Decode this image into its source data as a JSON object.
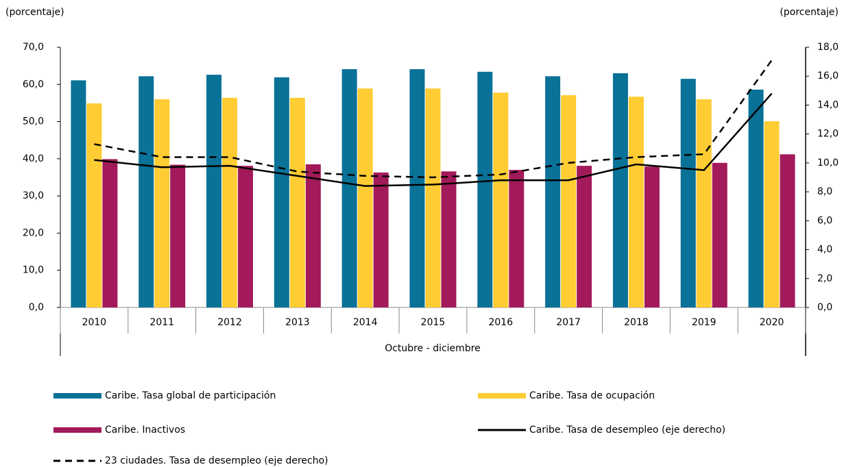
{
  "chart_data": {
    "type": "bar",
    "y_label": "(porcentaje)",
    "y2_label": "(porcentaje)",
    "x_label": "Octubre - diciembre",
    "categories": [
      "2010",
      "2011",
      "2012",
      "2013",
      "2014",
      "2015",
      "2016",
      "2017",
      "2018",
      "2019",
      "2020"
    ],
    "series": [
      {
        "name": "Caribe. Tasa global de participación",
        "type": "bar",
        "color": "#0a7197",
        "values": [
          61.1,
          62.2,
          62.6,
          61.9,
          64.1,
          64.1,
          63.4,
          62.2,
          63.0,
          61.5,
          58.6
        ]
      },
      {
        "name": "Caribe. Tasa de ocupación",
        "type": "bar",
        "color": "#ffcc33",
        "values": [
          54.9,
          56.0,
          56.4,
          56.4,
          58.9,
          58.9,
          57.8,
          57.1,
          56.7,
          56.0,
          50.1
        ]
      },
      {
        "name": "Caribe. Inactivos",
        "type": "bar",
        "color": "#a31a5a",
        "values": [
          39.9,
          38.4,
          38.1,
          38.5,
          36.3,
          36.6,
          37.0,
          38.1,
          37.9,
          38.9,
          41.2
        ]
      },
      {
        "name": "Caribe. Tasa de desempleo (eje derecho)",
        "type": "line",
        "axis": "y2",
        "color": "#000000",
        "dashed": false,
        "values": [
          10.2,
          9.7,
          9.8,
          9.1,
          8.4,
          8.5,
          8.8,
          8.8,
          9.9,
          9.5,
          14.8
        ]
      },
      {
        "name": "23 ciudades. Tasa de desempleo (eje derecho)",
        "type": "line",
        "axis": "y2",
        "color": "#000000",
        "dashed": true,
        "values": [
          11.3,
          10.4,
          10.4,
          9.4,
          9.1,
          9.0,
          9.2,
          10.0,
          10.4,
          10.6,
          17.1
        ]
      }
    ],
    "ylim": [
      0,
      70
    ],
    "yticks": [
      {
        "value": 0,
        "label": "0,0"
      },
      {
        "value": 10,
        "label": "10,0"
      },
      {
        "value": 20,
        "label": "20,0"
      },
      {
        "value": 30,
        "label": "30,0"
      },
      {
        "value": 40,
        "label": "40,0"
      },
      {
        "value": 50,
        "label": "50,0"
      },
      {
        "value": 60,
        "label": "60,0"
      },
      {
        "value": 70,
        "label": "70,0"
      }
    ],
    "y2lim": [
      0,
      18
    ],
    "y2ticks": [
      {
        "value": 0,
        "label": "0,0"
      },
      {
        "value": 2,
        "label": "2,0"
      },
      {
        "value": 4,
        "label": "4,0"
      },
      {
        "value": 6,
        "label": "6,0"
      },
      {
        "value": 8,
        "label": "8,0"
      },
      {
        "value": 10,
        "label": "10,0"
      },
      {
        "value": 12,
        "label": "12,0"
      },
      {
        "value": 14,
        "label": "14,0"
      },
      {
        "value": 16,
        "label": "16,0"
      },
      {
        "value": 18,
        "label": "18,0"
      }
    ],
    "grid": false
  }
}
